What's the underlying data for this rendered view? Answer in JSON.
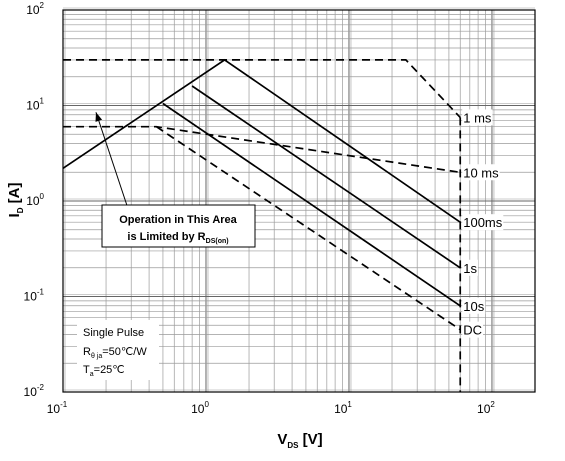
{
  "chart_data": {
    "type": "line",
    "x_scale": "log",
    "y_scale": "log",
    "xlim": [
      0.1,
      200
    ],
    "ylim": [
      0.01,
      100
    ],
    "grid": true,
    "xlabel": {
      "main": "V",
      "sub": "DS",
      "unit": " [V]"
    },
    "ylabel": {
      "main": "I",
      "sub": "D",
      "unit": " [A]"
    },
    "x_ticks": [
      {
        "base": "10",
        "exp": "-1"
      },
      {
        "base": "10",
        "exp": "0"
      },
      {
        "base": "10",
        "exp": "1"
      },
      {
        "base": "10",
        "exp": "2"
      }
    ],
    "y_ticks": [
      {
        "base": "10",
        "exp": "-2"
      },
      {
        "base": "10",
        "exp": "-1"
      },
      {
        "base": "10",
        "exp": "0"
      },
      {
        "base": "10",
        "exp": "1"
      },
      {
        "base": "10",
        "exp": "2"
      }
    ],
    "series": [
      {
        "label": "1 ms",
        "style": "dashed",
        "x": [
          0.1,
          4.0,
          25.0,
          60.0
        ],
        "y": [
          30,
          30,
          30,
          7.5
        ]
      },
      {
        "label": "10 ms",
        "style": "dashed",
        "x": [
          0.1,
          0.45,
          60.0
        ],
        "y": [
          6,
          6,
          2.0
        ]
      },
      {
        "label": "100ms",
        "style": "solid",
        "x": [
          0.1,
          1.35,
          60.0
        ],
        "y": [
          2.2,
          30,
          0.6
        ]
      },
      {
        "label": "1s",
        "style": "solid",
        "x": [
          0.8,
          60.0
        ],
        "y": [
          16,
          0.2
        ]
      },
      {
        "label": "10s",
        "style": "solid",
        "x": [
          0.5,
          60.0
        ],
        "y": [
          10.5,
          0.08
        ]
      },
      {
        "label": "DC",
        "style": "dashed",
        "x": [
          0.45,
          60.0
        ],
        "y": [
          6,
          0.045
        ]
      }
    ],
    "vertical_limit": {
      "x": 60,
      "style": "dashed"
    },
    "annotation": {
      "line1": "Operation in This Area",
      "line2_prefix": "is Limited by R",
      "line2_sub": "DS(on)",
      "arrow_from": [
        0.28,
        0.9
      ],
      "arrow_to": [
        0.17,
        8.5
      ]
    },
    "conditions": {
      "line1": "Single Pulse",
      "line2_prefix": "R",
      "line2_sub": "θ ja",
      "line2_suffix": "=50℃/W",
      "line3_prefix": "T",
      "line3_sub": "a",
      "line3_suffix": "=25℃"
    }
  }
}
